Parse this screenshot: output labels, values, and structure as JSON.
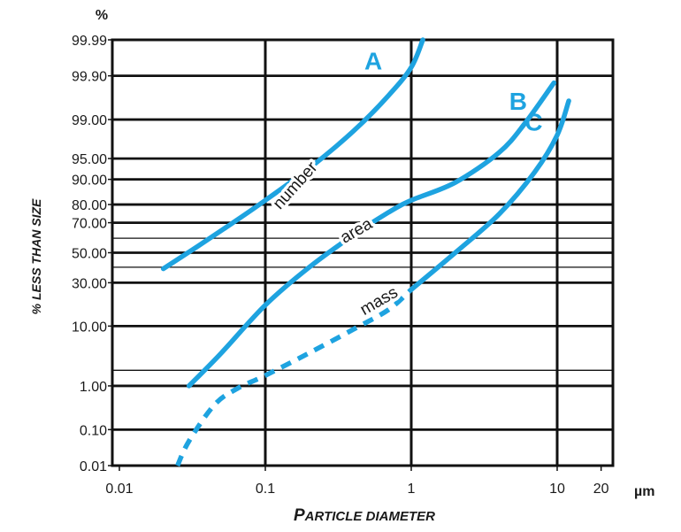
{
  "chart_data": {
    "type": "line",
    "title": "",
    "xlabel": "Particle diameter",
    "ylabel": "% less than size",
    "x_scale": "log",
    "y_scale": "probability",
    "xlim": [
      0.01,
      20
    ],
    "ylim": [
      0.01,
      99.99
    ],
    "x_ticks": [
      "0.01",
      "0.1",
      "1",
      "10",
      "20"
    ],
    "x_unit": "µm",
    "y_ticks": [
      "0.01",
      "0.10",
      "1.00",
      "10.00",
      "30.00",
      "50.00",
      "70.00",
      "80.00",
      "90.00",
      "95.00",
      "99.00",
      "99.90",
      "99.99"
    ],
    "y_unit": "%",
    "grid": true,
    "line_color": "#1ea3e0",
    "series": [
      {
        "name": "A",
        "label": "number",
        "x": [
          0.02,
          0.035,
          0.06,
          0.1,
          0.2,
          0.4,
          0.7,
          1.0,
          1.2
        ],
        "y": [
          39,
          55,
          70,
          82,
          93,
          98.3,
          99.7,
          99.94,
          99.99
        ]
      },
      {
        "name": "B",
        "label": "area",
        "x": [
          0.03,
          0.05,
          0.1,
          0.2,
          0.4,
          0.7,
          1.0,
          2.0,
          4.0,
          6.0,
          9.5
        ],
        "y": [
          1.0,
          4.0,
          18,
          40,
          62,
          76,
          82,
          89,
          96,
          98.8,
          99.85
        ]
      },
      {
        "name": "C",
        "label": "mass",
        "x": [
          0.025,
          0.03,
          0.045,
          0.065,
          0.1,
          0.2,
          0.4,
          0.7,
          1.0,
          2.0,
          4.0,
          7.0,
          10.0,
          12.0
        ],
        "y": [
          0.01,
          0.05,
          0.4,
          0.9,
          1.6,
          4,
          9,
          16,
          26,
          50,
          75,
          92,
          98,
          99.6
        ],
        "dashed_until_x": 0.75
      }
    ]
  }
}
